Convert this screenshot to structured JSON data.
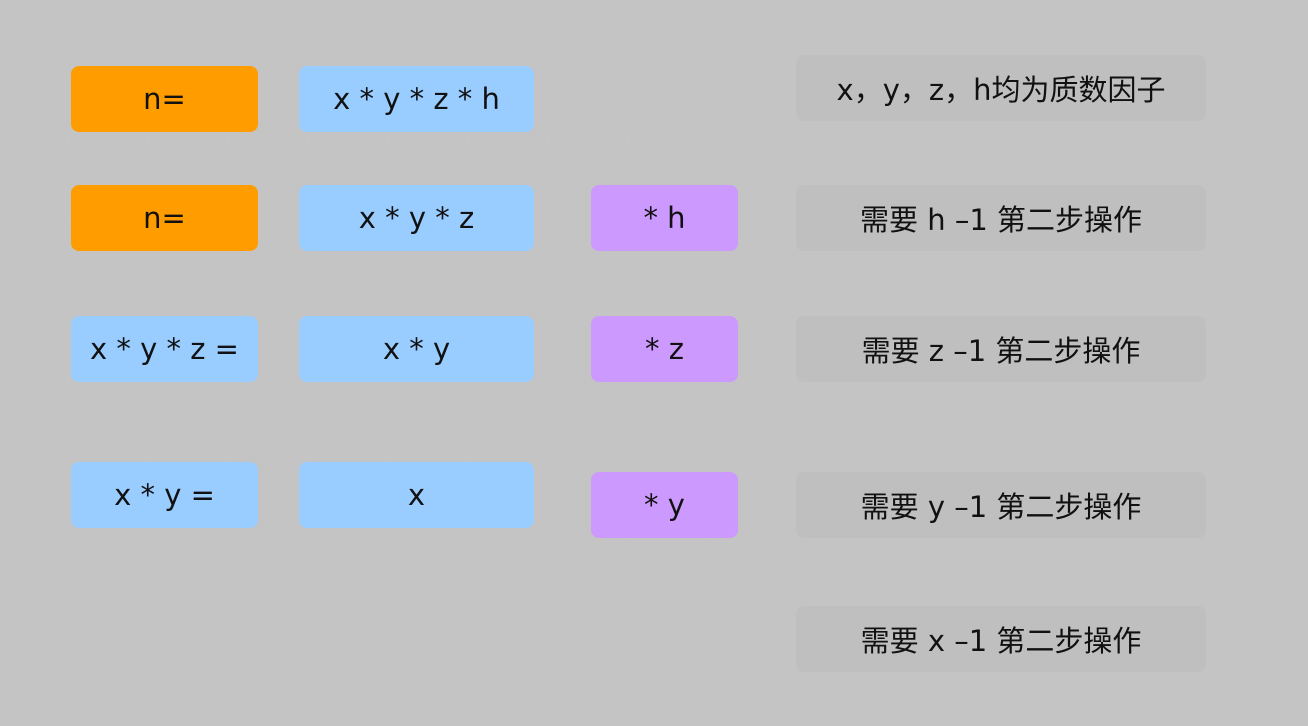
{
  "colors": {
    "orange": "#ff9c00",
    "blue": "#99ccff",
    "purple": "#cc99ff",
    "gray": "#bfbfbf",
    "grid_dot": "#c6c6c6"
  },
  "rows": [
    {
      "left": "n=",
      "middle": "x * y * z * h",
      "note": "x，y，z，h均为质数因子"
    },
    {
      "left": "n=",
      "middle": "x * y * z",
      "factor": "* h",
      "note": "需要 h –1 第二步操作"
    },
    {
      "left": "x * y * z =",
      "middle": "x * y",
      "factor": "* z",
      "note": "需要 z –1 第二步操作"
    },
    {
      "left": "x * y =",
      "middle": "x",
      "factor": "* y",
      "note": "需要 y –1 第二步操作"
    },
    {
      "note": "需要 x –1 第二步操作"
    }
  ]
}
